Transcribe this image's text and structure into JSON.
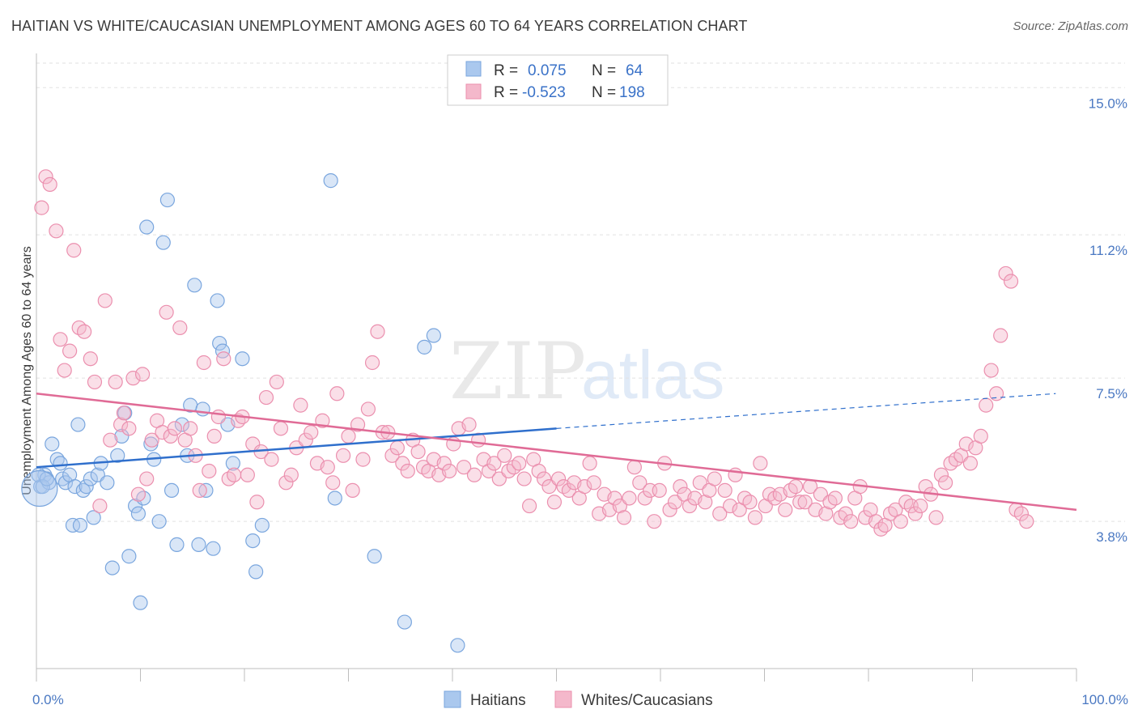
{
  "header": {
    "title": "HAITIAN VS WHITE/CAUCASIAN UNEMPLOYMENT AMONG AGES 60 TO 64 YEARS CORRELATION CHART",
    "source": "Source: ZipAtlas.com"
  },
  "watermark": {
    "zip": "ZIP",
    "atlas": "atlas"
  },
  "colors": {
    "haitians_fill": "#aac8ee",
    "haitians_stroke": "#7aa6de",
    "haitians_line": "#2f6fcc",
    "whites_fill": "#f4b8cb",
    "whites_stroke": "#eb8fae",
    "whites_line": "#e06b96",
    "value_text": "#3a72c8",
    "label_text": "#333333"
  },
  "legend": {
    "rows": [
      {
        "r_label": "R =",
        "r_value": "0.075",
        "n_label": "N =",
        "n_value": "64"
      },
      {
        "r_label": "R =",
        "r_value": "-0.523",
        "n_label": "N =",
        "n_value": "198"
      }
    ]
  },
  "chart_data": {
    "type": "scatter",
    "title": "HAITIAN VS WHITE/CAUCASIAN UNEMPLOYMENT AMONG AGES 60 TO 64 YEARS CORRELATION CHART",
    "ylabel": "Unemployment Among Ages 60 to 64 years",
    "xlabel": "",
    "x_range": [
      0,
      100
    ],
    "y_range": [
      0,
      15.8
    ],
    "y_ticks": [
      {
        "value": 3.8,
        "label": "3.8%"
      },
      {
        "value": 7.5,
        "label": "7.5%"
      },
      {
        "value": 11.2,
        "label": "11.2%"
      },
      {
        "value": 15.0,
        "label": "15.0%"
      }
    ],
    "x_tick_labels": [
      {
        "value": 0,
        "label": "0.0%"
      },
      {
        "value": 100,
        "label": "100.0%"
      }
    ],
    "grid": "horizontal dashed",
    "legend_placement": "top-center",
    "series": [
      {
        "name": "Haitians",
        "r": 0.075,
        "n": 64,
        "trend": {
          "x0": 0,
          "y0": 5.2,
          "x1": 50,
          "y1": 6.2,
          "dashed_to_x": 98,
          "dashed_to_y": 7.1
        },
        "points": [
          [
            0.4,
            4.7
          ],
          [
            0.8,
            5.0
          ],
          [
            1.2,
            4.8
          ],
          [
            1.5,
            5.8
          ],
          [
            2.0,
            5.4
          ],
          [
            2.3,
            5.3
          ],
          [
            2.5,
            4.9
          ],
          [
            2.8,
            4.8
          ],
          [
            3.2,
            5.0
          ],
          [
            3.5,
            3.7
          ],
          [
            3.7,
            4.7
          ],
          [
            4.0,
            6.3
          ],
          [
            4.2,
            3.7
          ],
          [
            4.5,
            4.6
          ],
          [
            4.8,
            4.7
          ],
          [
            5.2,
            4.9
          ],
          [
            5.5,
            3.9
          ],
          [
            5.9,
            5.0
          ],
          [
            6.2,
            5.3
          ],
          [
            6.8,
            4.8
          ],
          [
            7.3,
            2.6
          ],
          [
            7.8,
            5.5
          ],
          [
            8.2,
            6.0
          ],
          [
            8.5,
            6.6
          ],
          [
            8.9,
            2.9
          ],
          [
            9.5,
            4.2
          ],
          [
            9.8,
            4.0
          ],
          [
            10.0,
            1.7
          ],
          [
            10.3,
            4.4
          ],
          [
            10.6,
            11.4
          ],
          [
            11.0,
            5.8
          ],
          [
            11.3,
            5.4
          ],
          [
            11.8,
            3.8
          ],
          [
            12.2,
            11.0
          ],
          [
            12.6,
            12.1
          ],
          [
            13.0,
            4.6
          ],
          [
            13.5,
            3.2
          ],
          [
            14.0,
            6.3
          ],
          [
            14.5,
            5.5
          ],
          [
            14.8,
            6.8
          ],
          [
            15.2,
            9.9
          ],
          [
            15.6,
            3.2
          ],
          [
            16.0,
            6.7
          ],
          [
            16.3,
            4.6
          ],
          [
            17.0,
            3.1
          ],
          [
            17.4,
            9.5
          ],
          [
            17.6,
            8.4
          ],
          [
            17.9,
            8.2
          ],
          [
            18.4,
            6.3
          ],
          [
            18.9,
            5.3
          ],
          [
            19.8,
            8.0
          ],
          [
            20.8,
            3.3
          ],
          [
            21.1,
            2.5
          ],
          [
            21.7,
            3.7
          ],
          [
            28.3,
            12.6
          ],
          [
            28.7,
            4.4
          ],
          [
            32.5,
            2.9
          ],
          [
            35.4,
            1.2
          ],
          [
            37.3,
            8.3
          ],
          [
            38.2,
            8.6
          ],
          [
            40.5,
            0.6
          ],
          [
            0.2,
            5.0
          ],
          [
            0.6,
            4.7
          ],
          [
            1.0,
            4.9
          ]
        ]
      },
      {
        "name": "Whites/Caucasians",
        "r": -0.523,
        "n": 198,
        "trend": {
          "x0": 0,
          "y0": 7.1,
          "x1": 100,
          "y1": 4.1
        },
        "points": [
          [
            0.5,
            11.9
          ],
          [
            0.9,
            12.7
          ],
          [
            1.3,
            12.5
          ],
          [
            1.9,
            11.3
          ],
          [
            2.3,
            8.5
          ],
          [
            2.7,
            7.7
          ],
          [
            3.2,
            8.2
          ],
          [
            3.6,
            10.8
          ],
          [
            4.1,
            8.8
          ],
          [
            4.6,
            8.7
          ],
          [
            5.2,
            8.0
          ],
          [
            5.6,
            7.4
          ],
          [
            6.1,
            4.2
          ],
          [
            6.6,
            9.5
          ],
          [
            7.1,
            5.9
          ],
          [
            7.6,
            7.4
          ],
          [
            8.1,
            6.3
          ],
          [
            8.4,
            6.6
          ],
          [
            8.9,
            6.2
          ],
          [
            9.3,
            7.5
          ],
          [
            9.8,
            4.5
          ],
          [
            10.2,
            7.6
          ],
          [
            10.6,
            4.9
          ],
          [
            11.1,
            5.9
          ],
          [
            11.6,
            6.4
          ],
          [
            12.1,
            6.1
          ],
          [
            12.5,
            9.2
          ],
          [
            12.9,
            6.0
          ],
          [
            13.3,
            6.2
          ],
          [
            13.8,
            8.8
          ],
          [
            14.3,
            5.9
          ],
          [
            14.8,
            6.2
          ],
          [
            15.3,
            5.5
          ],
          [
            15.7,
            4.6
          ],
          [
            16.1,
            7.9
          ],
          [
            16.6,
            5.1
          ],
          [
            17.1,
            6.0
          ],
          [
            17.5,
            6.5
          ],
          [
            18.0,
            8.0
          ],
          [
            18.5,
            4.9
          ],
          [
            19.0,
            5.0
          ],
          [
            19.4,
            6.4
          ],
          [
            19.8,
            6.5
          ],
          [
            20.3,
            5.0
          ],
          [
            20.8,
            5.8
          ],
          [
            21.2,
            4.3
          ],
          [
            21.6,
            5.6
          ],
          [
            22.1,
            7.0
          ],
          [
            22.6,
            5.4
          ],
          [
            23.1,
            7.4
          ],
          [
            23.5,
            6.2
          ],
          [
            24.0,
            4.8
          ],
          [
            24.5,
            5.0
          ],
          [
            25.0,
            5.7
          ],
          [
            25.4,
            6.8
          ],
          [
            25.9,
            5.9
          ],
          [
            26.4,
            6.1
          ],
          [
            27.0,
            5.3
          ],
          [
            27.5,
            6.4
          ],
          [
            28.0,
            5.2
          ],
          [
            28.5,
            4.8
          ],
          [
            28.9,
            7.1
          ],
          [
            29.5,
            5.5
          ],
          [
            30.0,
            6.0
          ],
          [
            30.4,
            4.6
          ],
          [
            30.9,
            6.3
          ],
          [
            31.4,
            5.4
          ],
          [
            31.9,
            6.7
          ],
          [
            32.3,
            7.9
          ],
          [
            32.8,
            8.7
          ],
          [
            33.3,
            6.1
          ],
          [
            33.8,
            6.1
          ],
          [
            34.2,
            5.5
          ],
          [
            34.7,
            5.7
          ],
          [
            35.2,
            5.3
          ],
          [
            35.7,
            5.1
          ],
          [
            36.2,
            5.9
          ],
          [
            36.7,
            5.6
          ],
          [
            37.2,
            5.2
          ],
          [
            37.7,
            5.1
          ],
          [
            38.2,
            5.4
          ],
          [
            38.7,
            5.0
          ],
          [
            39.2,
            5.3
          ],
          [
            39.7,
            5.1
          ],
          [
            40.1,
            5.8
          ],
          [
            40.6,
            6.2
          ],
          [
            41.1,
            5.2
          ],
          [
            41.6,
            6.3
          ],
          [
            42.1,
            5.0
          ],
          [
            42.5,
            5.9
          ],
          [
            43.0,
            5.4
          ],
          [
            43.5,
            5.1
          ],
          [
            44.0,
            5.3
          ],
          [
            44.5,
            4.9
          ],
          [
            45.0,
            5.5
          ],
          [
            45.4,
            5.1
          ],
          [
            45.9,
            5.2
          ],
          [
            46.4,
            5.3
          ],
          [
            46.9,
            4.9
          ],
          [
            47.4,
            4.2
          ],
          [
            47.8,
            5.4
          ],
          [
            48.3,
            5.1
          ],
          [
            48.8,
            4.9
          ],
          [
            49.3,
            4.7
          ],
          [
            49.8,
            4.3
          ],
          [
            50.2,
            4.9
          ],
          [
            50.7,
            4.7
          ],
          [
            51.2,
            4.6
          ],
          [
            51.7,
            4.8
          ],
          [
            52.2,
            4.4
          ],
          [
            52.7,
            4.7
          ],
          [
            53.2,
            5.3
          ],
          [
            53.6,
            4.8
          ],
          [
            54.1,
            4.0
          ],
          [
            54.6,
            4.5
          ],
          [
            55.1,
            4.1
          ],
          [
            55.6,
            4.4
          ],
          [
            56.1,
            4.2
          ],
          [
            56.5,
            3.9
          ],
          [
            57.0,
            4.4
          ],
          [
            57.5,
            5.2
          ],
          [
            58.0,
            4.8
          ],
          [
            58.5,
            4.4
          ],
          [
            59.0,
            4.6
          ],
          [
            59.4,
            3.8
          ],
          [
            59.9,
            4.6
          ],
          [
            60.4,
            5.3
          ],
          [
            60.9,
            4.1
          ],
          [
            61.4,
            4.3
          ],
          [
            61.9,
            4.7
          ],
          [
            62.3,
            4.5
          ],
          [
            62.8,
            4.2
          ],
          [
            63.3,
            4.4
          ],
          [
            63.8,
            4.8
          ],
          [
            64.3,
            4.3
          ],
          [
            64.7,
            4.6
          ],
          [
            65.2,
            4.9
          ],
          [
            65.7,
            4.0
          ],
          [
            66.2,
            4.6
          ],
          [
            66.7,
            4.2
          ],
          [
            67.2,
            5.0
          ],
          [
            67.6,
            4.1
          ],
          [
            68.1,
            4.4
          ],
          [
            68.6,
            4.3
          ],
          [
            69.1,
            3.9
          ],
          [
            69.6,
            5.3
          ],
          [
            70.1,
            4.2
          ],
          [
            70.5,
            4.5
          ],
          [
            71.0,
            4.4
          ],
          [
            71.5,
            4.5
          ],
          [
            72.0,
            4.1
          ],
          [
            72.5,
            4.6
          ],
          [
            73.0,
            4.7
          ],
          [
            73.4,
            4.3
          ],
          [
            73.9,
            4.3
          ],
          [
            74.4,
            4.7
          ],
          [
            74.9,
            4.1
          ],
          [
            75.4,
            4.5
          ],
          [
            75.9,
            4.0
          ],
          [
            76.3,
            4.3
          ],
          [
            76.8,
            4.4
          ],
          [
            77.3,
            3.9
          ],
          [
            77.8,
            4.0
          ],
          [
            78.3,
            3.8
          ],
          [
            78.7,
            4.4
          ],
          [
            79.2,
            4.7
          ],
          [
            79.7,
            3.9
          ],
          [
            80.2,
            4.1
          ],
          [
            80.7,
            3.8
          ],
          [
            81.2,
            3.6
          ],
          [
            81.6,
            3.7
          ],
          [
            82.1,
            4.0
          ],
          [
            82.6,
            4.1
          ],
          [
            83.1,
            3.8
          ],
          [
            83.6,
            4.3
          ],
          [
            84.1,
            4.2
          ],
          [
            84.5,
            4.0
          ],
          [
            85.0,
            4.2
          ],
          [
            85.5,
            4.7
          ],
          [
            86.0,
            4.5
          ],
          [
            86.5,
            3.9
          ],
          [
            87.0,
            5.0
          ],
          [
            87.4,
            4.8
          ],
          [
            87.9,
            5.3
          ],
          [
            88.4,
            5.4
          ],
          [
            88.9,
            5.5
          ],
          [
            89.4,
            5.8
          ],
          [
            89.8,
            5.3
          ],
          [
            90.3,
            5.7
          ],
          [
            90.8,
            6.0
          ],
          [
            91.3,
            6.8
          ],
          [
            91.8,
            7.7
          ],
          [
            92.3,
            7.1
          ],
          [
            92.7,
            8.6
          ],
          [
            93.2,
            10.2
          ],
          [
            93.7,
            10.0
          ],
          [
            94.2,
            4.1
          ],
          [
            94.7,
            4.0
          ],
          [
            95.2,
            3.8
          ]
        ]
      }
    ]
  },
  "bottom_legend": {
    "items": [
      {
        "label": "Haitians"
      },
      {
        "label": "Whites/Caucasians"
      }
    ]
  }
}
